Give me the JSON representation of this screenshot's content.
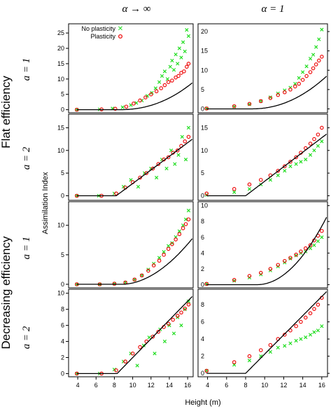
{
  "chart_data": {
    "type": "scatter",
    "layout_grid": {
      "rows": 4,
      "cols": 2
    },
    "column_headers": [
      "α → ∞",
      "α = 1"
    ],
    "row_headers": [
      "a = 1",
      "a = 2",
      "a = 1",
      "a = 2"
    ],
    "group_labels": [
      "Flat efficiency",
      "Decreasing efficiency"
    ],
    "xlabel": "Height (m)",
    "ylabel": "Assimilation Index",
    "xlim": [
      3,
      16.6
    ],
    "xticks": [
      4,
      6,
      8,
      10,
      12,
      14,
      16
    ],
    "legend": {
      "placement": "top-left of first panel",
      "entries": [
        {
          "label": "No plasticity",
          "marker": "x",
          "color": "#22dd22"
        },
        {
          "label": "Plasticity",
          "marker": "o",
          "color": "#ee1111"
        }
      ]
    },
    "series_colors": {
      "no_plasticity": "#22dd22",
      "plasticity": "#ee1111",
      "model_line": "#000000"
    },
    "panels": [
      {
        "row": 0,
        "col": 0,
        "ylim": [
          -1,
          28
        ],
        "yticks": [
          0,
          5,
          10,
          15,
          20,
          25
        ],
        "line": {
          "type": "power",
          "x0": 8.5,
          "coef": 0.09,
          "pow": 2.2
        },
        "points": {
          "no_plasticity": {
            "x": [
              3.9,
              6.4,
              7.8,
              8.9,
              9.8,
              10.4,
              11.0,
              11.6,
              12.1,
              12.5,
              12.9,
              13.2,
              13.5,
              13.8,
              14.1,
              14.3,
              14.5,
              14.7,
              14.9,
              15.1,
              15.3,
              15.5,
              15.7,
              15.9,
              16.1
            ],
            "y": [
              0,
              0.1,
              0.4,
              0.8,
              1.5,
              2.2,
              3.0,
              4.5,
              5.5,
              7.0,
              9.0,
              11.0,
              12.5,
              10.0,
              14.0,
              16.0,
              13.0,
              18.0,
              15.0,
              20.0,
              17.0,
              22.0,
              19.0,
              26.0,
              24.0
            ]
          },
          "plasticity": {
            "x": [
              3.9,
              6.6,
              8.1,
              9.3,
              10.1,
              10.8,
              11.4,
              12.0,
              12.6,
              13.1,
              13.5,
              13.9,
              14.3,
              14.7,
              15.0,
              15.3,
              15.6,
              15.9,
              16.1
            ],
            "y": [
              0,
              0.1,
              0.3,
              1.0,
              2.0,
              3.0,
              4.0,
              5.0,
              6.0,
              7.0,
              8.0,
              9.0,
              9.5,
              10.5,
              11.0,
              12.0,
              12.5,
              14.0,
              15.0
            ]
          }
        }
      },
      {
        "row": 0,
        "col": 1,
        "ylim": [
          -1,
          22
        ],
        "yticks": [
          0,
          5,
          10,
          15,
          20
        ],
        "line": {
          "type": "power",
          "x0": 8.6,
          "coef": 0.11,
          "pow": 2.1
        },
        "points": {
          "no_plasticity": {
            "x": [
              3.9,
              6.8,
              8.4,
              9.6,
              10.6,
              11.4,
              12.1,
              12.7,
              13.2,
              13.6,
              14.0,
              14.4,
              14.8,
              15.1,
              15.4,
              15.7,
              16.0
            ],
            "y": [
              0.1,
              0.6,
              1.2,
              2.0,
              3.0,
              4.0,
              4.8,
              5.5,
              6.5,
              8.0,
              9.5,
              11.0,
              13.0,
              14.0,
              16.0,
              18.0,
              20.5
            ]
          },
          "plasticity": {
            "x": [
              3.9,
              6.8,
              8.4,
              9.6,
              10.6,
              11.4,
              12.1,
              12.7,
              13.2,
              13.6,
              14.0,
              14.4,
              14.8,
              15.1,
              15.4,
              15.7,
              16.0
            ],
            "y": [
              0.1,
              0.7,
              1.3,
              2.0,
              2.8,
              3.6,
              4.3,
              5.0,
              5.8,
              6.5,
              7.5,
              8.5,
              9.5,
              10.5,
              11.5,
              12.5,
              13.5
            ]
          }
        }
      },
      {
        "row": 1,
        "col": 0,
        "ylim": [
          -1,
          18
        ],
        "yticks": [
          0,
          5,
          10,
          15
        ],
        "line": {
          "type": "power",
          "x0": 8.2,
          "coef": 1.5,
          "pow": 1.0
        },
        "points": {
          "no_plasticity": {
            "x": [
              3.9,
              6.3,
              8.0,
              9.0,
              9.8,
              10.6,
              11.3,
              12.0,
              12.6,
              13.2,
              13.7,
              14.2,
              14.6,
              15.0,
              15.4,
              15.8,
              16.1
            ],
            "y": [
              0,
              0,
              0.5,
              2.0,
              3.5,
              2.0,
              5.0,
              6.0,
              4.0,
              8.0,
              6.0,
              10.0,
              7.0,
              9.0,
              13.0,
              8.0,
              15.0
            ]
          },
          "plasticity": {
            "x": [
              3.9,
              6.6,
              8.2,
              9.2,
              10.0,
              10.8,
              11.5,
              12.2,
              12.8,
              13.4,
              13.9,
              14.4,
              14.9,
              15.3,
              15.7,
              16.1
            ],
            "y": [
              0,
              0,
              0.5,
              1.8,
              3.0,
              4.0,
              5.0,
              6.0,
              7.0,
              8.0,
              8.5,
              9.5,
              10.0,
              11.0,
              12.0,
              13.0
            ]
          }
        }
      },
      {
        "row": 1,
        "col": 1,
        "ylim": [
          -1,
          18
        ],
        "yticks": [
          0,
          5,
          10,
          15
        ],
        "line": {
          "type": "power",
          "x0": 8.0,
          "coef": 1.6,
          "pow": 1.0
        },
        "points": {
          "no_plasticity": {
            "x": [
              3.9,
              6.8,
              8.4,
              9.6,
              10.6,
              11.4,
              12.1,
              12.7,
              13.3,
              13.8,
              14.3,
              14.8,
              15.2,
              15.6,
              16.0
            ],
            "y": [
              0.2,
              0.8,
              1.5,
              2.5,
              3.5,
              4.5,
              5.5,
              6.5,
              7.0,
              7.5,
              8.0,
              9.0,
              10.0,
              11.0,
              12.0
            ]
          },
          "plasticity": {
            "x": [
              3.9,
              6.8,
              8.4,
              9.6,
              10.6,
              11.4,
              12.1,
              12.7,
              13.3,
              13.8,
              14.3,
              14.8,
              15.2,
              15.6,
              16.0
            ],
            "y": [
              0.5,
              1.5,
              2.5,
              3.5,
              4.5,
              5.5,
              6.5,
              7.5,
              8.5,
              9.5,
              10.5,
              11.5,
              12.5,
              13.5,
              15.0
            ]
          }
        }
      },
      {
        "row": 2,
        "col": 0,
        "ylim": [
          -0.6,
          14
        ],
        "yticks": [
          0,
          5,
          10
        ],
        "line": {
          "type": "power",
          "x0": 8.8,
          "coef": 0.16,
          "pow": 1.9
        },
        "points": {
          "no_plasticity": {
            "x": [
              3.9,
              6.4,
              8.0,
              9.2,
              10.2,
              11.0,
              11.7,
              12.3,
              12.9,
              13.4,
              13.9,
              14.3,
              14.7,
              15.1,
              15.5,
              15.8,
              16.1
            ],
            "y": [
              0,
              0,
              0.1,
              0.3,
              0.8,
              1.5,
              2.5,
              3.5,
              4.5,
              5.5,
              6.5,
              7.0,
              8.0,
              9.0,
              10.0,
              11.0,
              12.5
            ]
          },
          "plasticity": {
            "x": [
              3.9,
              6.4,
              8.0,
              9.2,
              10.2,
              11.0,
              11.7,
              12.3,
              12.9,
              13.4,
              13.9,
              14.3,
              14.7,
              15.1,
              15.5,
              15.8,
              16.1
            ],
            "y": [
              0,
              0,
              0.1,
              0.3,
              0.8,
              1.5,
              2.3,
              3.2,
              4.0,
              5.0,
              6.0,
              6.8,
              7.6,
              8.5,
              9.5,
              10.2,
              11.0
            ]
          }
        }
      },
      {
        "row": 2,
        "col": 1,
        "ylim": [
          -0.4,
          10.5
        ],
        "yticks": [
          0,
          2,
          4,
          6,
          8,
          10
        ],
        "line": {
          "type": "power",
          "x0": 9.2,
          "coef": 0.16,
          "pow": 2.0
        },
        "points": {
          "no_plasticity": {
            "x": [
              3.9,
              6.8,
              8.4,
              9.6,
              10.6,
              11.4,
              12.1,
              12.7,
              13.3,
              13.8,
              14.3,
              14.8,
              15.2,
              15.6,
              16.0
            ],
            "y": [
              0.1,
              0.5,
              0.9,
              1.3,
              1.8,
              2.3,
              2.8,
              3.3,
              3.7,
              4.0,
              4.2,
              4.6,
              5.0,
              5.5,
              6.0
            ]
          },
          "plasticity": {
            "x": [
              3.9,
              6.8,
              8.4,
              9.6,
              10.6,
              11.4,
              12.1,
              12.7,
              13.3,
              13.8,
              14.3,
              14.8,
              15.2,
              15.6,
              16.0
            ],
            "y": [
              0.1,
              0.6,
              1.1,
              1.5,
              2.0,
              2.5,
              3.0,
              3.4,
              3.8,
              4.2,
              4.6,
              5.0,
              5.6,
              6.2,
              6.8
            ]
          }
        }
      },
      {
        "row": 3,
        "col": 0,
        "ylim": [
          -0.4,
          10.5
        ],
        "yticks": [
          0,
          2,
          4,
          6,
          8,
          10
        ],
        "line": {
          "type": "power",
          "x0": 8.3,
          "coef": 1.17,
          "pow": 1.0
        },
        "points": {
          "no_plasticity": {
            "x": [
              3.9,
              6.4,
              8.0,
              9.0,
              9.8,
              10.5,
              11.2,
              11.8,
              12.4,
              13.0,
              13.5,
              14.0,
              14.5,
              14.9,
              15.3,
              15.7,
              16.1
            ],
            "y": [
              0,
              0,
              0.5,
              1.5,
              2.5,
              1.0,
              3.5,
              4.5,
              2.5,
              5.5,
              4.0,
              6.0,
              5.0,
              7.0,
              6.0,
              8.0,
              9.0
            ]
          },
          "plasticity": {
            "x": [
              3.9,
              6.6,
              8.2,
              9.2,
              10.0,
              10.8,
              11.5,
              12.2,
              12.8,
              13.4,
              13.9,
              14.4,
              14.9,
              15.3,
              15.7,
              16.1
            ],
            "y": [
              0,
              0,
              0.4,
              1.5,
              2.5,
              3.3,
              4.0,
              4.6,
              5.2,
              5.8,
              6.2,
              6.7,
              7.2,
              7.6,
              8.1,
              8.6
            ]
          }
        }
      },
      {
        "row": 3,
        "col": 1,
        "ylim": [
          -0.4,
          9.8
        ],
        "yticks": [
          0,
          2,
          4,
          6,
          8
        ],
        "line": {
          "type": "power",
          "x0": 8.0,
          "coef": 1.12,
          "pow": 1.0
        },
        "points": {
          "no_plasticity": {
            "x": [
              3.9,
              6.8,
              8.4,
              9.6,
              10.6,
              11.4,
              12.1,
              12.7,
              13.3,
              13.8,
              14.3,
              14.8,
              15.2,
              15.6,
              16.0
            ],
            "y": [
              0.3,
              1.0,
              1.5,
              2.0,
              2.5,
              3.0,
              3.2,
              3.5,
              3.8,
              4.0,
              4.2,
              4.5,
              4.8,
              5.0,
              5.5
            ]
          },
          "plasticity": {
            "x": [
              3.9,
              6.8,
              8.4,
              9.6,
              10.6,
              11.4,
              12.1,
              12.7,
              13.3,
              13.8,
              14.3,
              14.8,
              15.2,
              15.6,
              16.0
            ],
            "y": [
              0.3,
              1.3,
              2.0,
              2.7,
              3.3,
              4.0,
              4.5,
              5.0,
              5.5,
              6.0,
              6.5,
              7.0,
              7.5,
              8.0,
              8.8
            ]
          }
        }
      }
    ]
  }
}
